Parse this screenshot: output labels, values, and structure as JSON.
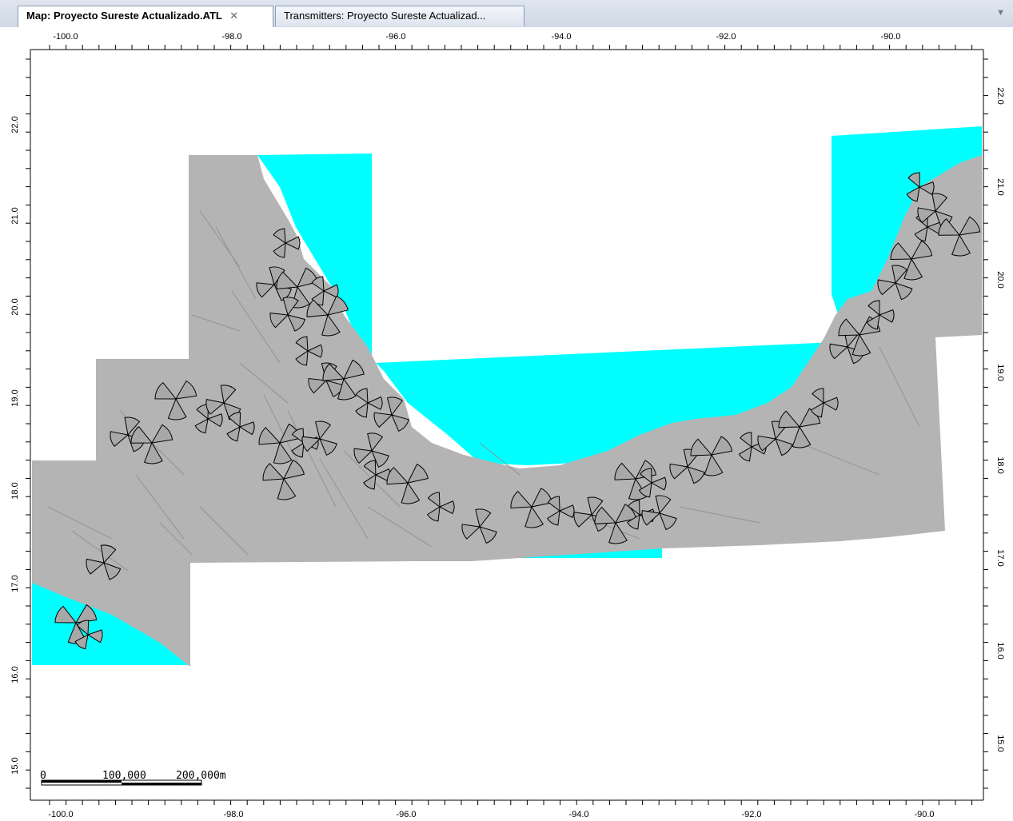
{
  "tabs": [
    {
      "label": "Map: Proyecto Sureste Actualizado.ATL",
      "active": true
    },
    {
      "label": "Transmitters: Proyecto Sureste Actualizad...",
      "active": false
    }
  ],
  "icons": {
    "tab_close": "close-icon",
    "tab_menu": "chevron-down-icon"
  },
  "axes": {
    "top_ticks": [
      "-100.0",
      "-98.0",
      "-96.0",
      "-94.0",
      "-92.0",
      "-90.0"
    ],
    "bottom_ticks": [
      "-100.0",
      "-98.0",
      "-96.0",
      "-94.0",
      "-92.0",
      "-90.0"
    ],
    "left_ticks": [
      "22.0",
      "21.0",
      "20.0",
      "19.0",
      "18.0",
      "17.0",
      "16.0",
      "15.0"
    ],
    "right_ticks": [
      "22.0",
      "21.0",
      "20.0",
      "19.0",
      "18.0",
      "17.0",
      "16.0",
      "15.0"
    ]
  },
  "scale_bar": {
    "start": "0",
    "mid": "100,000",
    "end": "200,000m"
  },
  "colors": {
    "water": "#00ffff",
    "terrain": "#b4b4b4",
    "sector_fill": "#a8a8a8",
    "sector_stroke": "#000000"
  }
}
